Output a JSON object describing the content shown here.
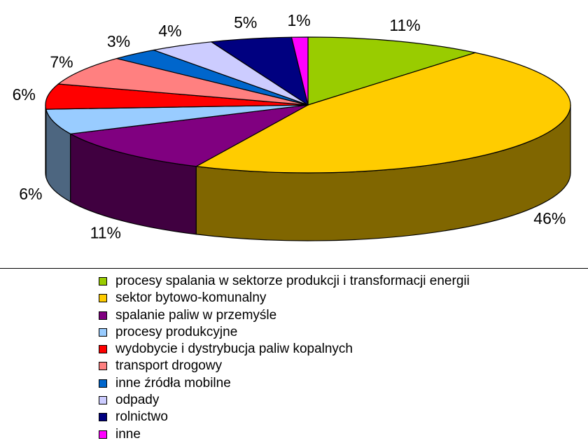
{
  "chart_data": {
    "type": "pie",
    "style": "3d",
    "categories": [
      "procesy spalania w sektorze produkcji i transformacji energii",
      "sektor bytowo-komunalny",
      "spalanie paliw w przemyśle",
      "procesy produkcyjne",
      "wydobycie i dystrybucja paliw kopalnych",
      "transport drogowy",
      "inne źródła mobilne",
      "odpady",
      "rolnictwo",
      "inne"
    ],
    "values": [
      11,
      46,
      11,
      6,
      6,
      7,
      3,
      4,
      5,
      1
    ],
    "data_labels": [
      "11%",
      "46%",
      "11%",
      "6%",
      "6%",
      "7%",
      "3%",
      "4%",
      "5%",
      "1%"
    ],
    "colors": [
      "#99CC00",
      "#FFCC00",
      "#800080",
      "#99CCFF",
      "#FF0000",
      "#FF8080",
      "#0066CC",
      "#CCCCFF",
      "#000080",
      "#FF00FF"
    ],
    "side_colors": [
      "#4D6600",
      "#806600",
      "#400040",
      "#4D6680",
      "#800000",
      "#804040",
      "#003366",
      "#666680",
      "#000040",
      "#800080"
    ],
    "legend_position": "bottom"
  }
}
